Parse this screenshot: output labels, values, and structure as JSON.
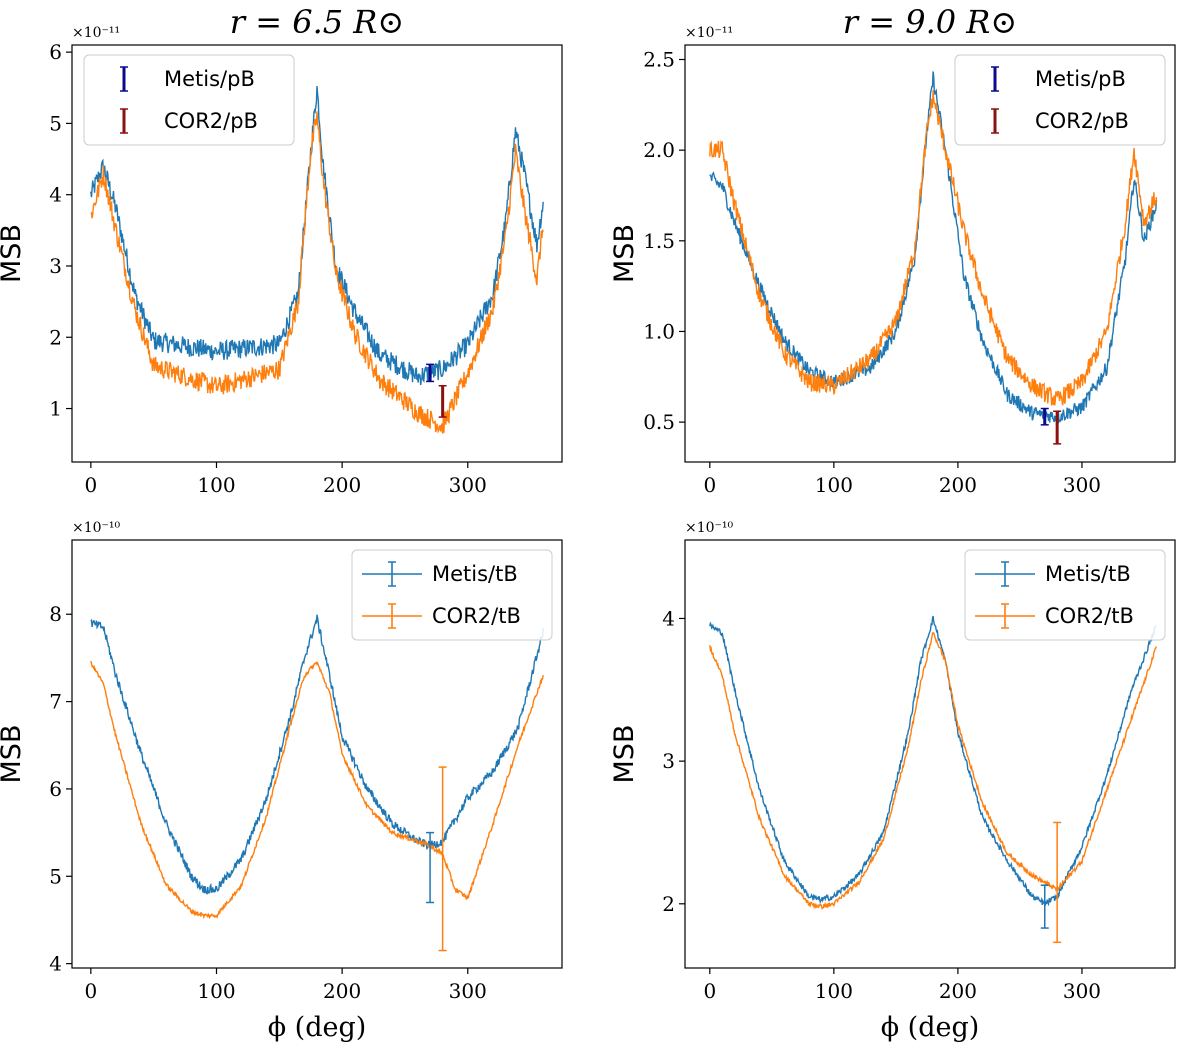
{
  "colors": {
    "metis": "#1f77b4",
    "cor2": "#ff7f0e",
    "metis_err_pb": "#0b0b8a",
    "cor2_err_pb": "#8b1010"
  },
  "chart_data": [
    {
      "type": "line",
      "title": "r = 6.5 R⊙",
      "xlabel": "",
      "ylabel": "MSB",
      "multiplier": "×10⁻¹¹",
      "xlim": [
        -15,
        375
      ],
      "ylim": [
        0.25,
        6.1
      ],
      "xticks": [
        0,
        100,
        200,
        300
      ],
      "yticks": [
        1,
        2,
        3,
        4,
        5,
        6
      ],
      "legend_position": "top-left",
      "series": [
        {
          "name": "Metis/pB",
          "color": "#1f77b4",
          "noise": 0.14,
          "key_x": [
            0,
            10,
            20,
            35,
            50,
            100,
            150,
            165,
            175,
            180,
            185,
            195,
            210,
            230,
            260,
            280,
            300,
            320,
            330,
            338,
            345,
            355,
            360
          ],
          "key_y": [
            4.0,
            4.4,
            3.8,
            2.6,
            1.95,
            1.8,
            1.9,
            2.6,
            4.6,
            5.5,
            4.4,
            3.0,
            2.35,
            1.75,
            1.45,
            1.55,
            1.9,
            2.6,
            3.6,
            4.9,
            4.3,
            3.3,
            3.9
          ],
          "errorbar": {
            "x": 270,
            "y": 1.5,
            "err": 0.12,
            "color": "#0b0b8a"
          }
        },
        {
          "name": "COR2/pB",
          "color": "#ff7f0e",
          "noise": 0.14,
          "key_x": [
            0,
            10,
            20,
            35,
            50,
            100,
            150,
            165,
            175,
            180,
            185,
            195,
            210,
            230,
            260,
            280,
            300,
            320,
            330,
            338,
            345,
            355,
            360
          ],
          "key_y": [
            3.7,
            4.3,
            3.5,
            2.4,
            1.6,
            1.3,
            1.55,
            2.5,
            4.6,
            5.1,
            4.2,
            2.9,
            2.05,
            1.4,
            0.95,
            0.75,
            1.5,
            2.4,
            3.4,
            4.6,
            3.8,
            2.8,
            3.6
          ],
          "errorbar": {
            "x": 280,
            "y": 1.1,
            "err": 0.22,
            "color": "#8b1010"
          }
        }
      ]
    },
    {
      "type": "line",
      "title": "r = 9.0 R⊙",
      "xlabel": "",
      "ylabel": "MSB",
      "multiplier": "×10⁻¹¹",
      "xlim": [
        -20,
        375
      ],
      "ylim": [
        0.28,
        2.58
      ],
      "xticks": [
        0,
        100,
        200,
        300
      ],
      "yticks": [
        0.5,
        1.0,
        1.5,
        2.0,
        2.5
      ],
      "legend_position": "top-right",
      "series": [
        {
          "name": "Metis/pB",
          "color": "#1f77b4",
          "noise": 0.04,
          "key_x": [
            0,
            10,
            20,
            40,
            60,
            80,
            100,
            130,
            150,
            165,
            175,
            180,
            190,
            205,
            220,
            240,
            260,
            280,
            300,
            320,
            335,
            342,
            350,
            360
          ],
          "key_y": [
            1.85,
            1.8,
            1.6,
            1.25,
            0.95,
            0.78,
            0.72,
            0.8,
            1.0,
            1.4,
            2.1,
            2.4,
            2.0,
            1.3,
            0.95,
            0.65,
            0.55,
            0.53,
            0.58,
            0.8,
            1.4,
            1.85,
            1.5,
            1.7
          ],
          "errorbar": {
            "x": 270,
            "y": 0.53,
            "err": 0.045,
            "color": "#0b0b8a"
          }
        },
        {
          "name": "COR2/pB",
          "color": "#ff7f0e",
          "noise": 0.05,
          "key_x": [
            0,
            10,
            20,
            40,
            60,
            80,
            100,
            130,
            150,
            165,
            175,
            180,
            190,
            205,
            220,
            240,
            260,
            280,
            300,
            320,
            335,
            342,
            350,
            360
          ],
          "key_y": [
            2.0,
            2.0,
            1.7,
            1.2,
            0.88,
            0.72,
            0.7,
            0.85,
            1.05,
            1.45,
            2.1,
            2.3,
            2.0,
            1.55,
            1.2,
            0.85,
            0.7,
            0.62,
            0.72,
            1.0,
            1.6,
            2.0,
            1.6,
            1.75
          ],
          "errorbar": {
            "x": 280,
            "y": 0.47,
            "err": 0.09,
            "color": "#8b1010"
          }
        }
      ]
    },
    {
      "type": "line",
      "title": "",
      "xlabel": "ϕ (deg)",
      "ylabel": "MSB",
      "multiplier": "×10⁻¹⁰",
      "xlim": [
        -15,
        375
      ],
      "ylim": [
        3.95,
        8.85
      ],
      "xticks": [
        0,
        100,
        200,
        300
      ],
      "yticks": [
        4,
        5,
        6,
        7,
        8
      ],
      "legend_position": "top-right",
      "series": [
        {
          "name": "Metis/tB",
          "color": "#1f77b4",
          "noise": 0.05,
          "key_x": [
            0,
            10,
            20,
            40,
            60,
            80,
            90,
            100,
            120,
            140,
            160,
            170,
            180,
            190,
            200,
            220,
            240,
            260,
            270,
            280,
            300,
            320,
            340,
            360
          ],
          "key_y": [
            7.9,
            7.85,
            7.3,
            6.4,
            5.6,
            5.0,
            4.85,
            4.85,
            5.2,
            5.9,
            6.9,
            7.5,
            7.95,
            7.3,
            6.6,
            6.0,
            5.6,
            5.4,
            5.35,
            5.4,
            5.9,
            6.2,
            6.7,
            7.8
          ],
          "errorbar": {
            "x": 270,
            "y": 5.1,
            "err": 0.4,
            "color": "#1f77b4"
          }
        },
        {
          "name": "COR2/tB",
          "color": "#ff7f0e",
          "noise": 0.025,
          "key_x": [
            0,
            10,
            20,
            40,
            60,
            80,
            90,
            100,
            120,
            140,
            160,
            170,
            180,
            190,
            200,
            220,
            240,
            260,
            270,
            280,
            290,
            300,
            320,
            340,
            360
          ],
          "key_y": [
            7.45,
            7.2,
            6.6,
            5.6,
            4.9,
            4.6,
            4.55,
            4.55,
            4.9,
            5.7,
            6.8,
            7.3,
            7.45,
            7.1,
            6.4,
            5.8,
            5.5,
            5.4,
            5.35,
            5.25,
            4.85,
            4.75,
            5.6,
            6.5,
            7.3
          ],
          "errorbar": {
            "x": 280,
            "y": 5.2,
            "err": 1.05,
            "color": "#ff7f0e"
          }
        }
      ]
    },
    {
      "type": "line",
      "title": "",
      "xlabel": "ϕ (deg)",
      "ylabel": "MSB",
      "multiplier": "×10⁻¹⁰",
      "xlim": [
        -20,
        375
      ],
      "ylim": [
        1.55,
        4.55
      ],
      "xticks": [
        0,
        100,
        200,
        300
      ],
      "yticks": [
        2,
        3,
        4
      ],
      "legend_position": "top-right",
      "series": [
        {
          "name": "Metis/tB",
          "color": "#1f77b4",
          "noise": 0.02,
          "key_x": [
            0,
            10,
            20,
            40,
            60,
            80,
            90,
            100,
            120,
            140,
            160,
            170,
            180,
            190,
            200,
            220,
            240,
            260,
            270,
            280,
            300,
            320,
            340,
            360
          ],
          "key_y": [
            3.95,
            3.9,
            3.5,
            2.8,
            2.3,
            2.05,
            2.03,
            2.05,
            2.2,
            2.5,
            3.2,
            3.7,
            4.0,
            3.7,
            3.2,
            2.6,
            2.3,
            2.05,
            2.0,
            2.05,
            2.4,
            2.9,
            3.5,
            3.95
          ],
          "errorbar": {
            "x": 270,
            "y": 1.98,
            "err": 0.15,
            "color": "#1f77b4"
          }
        },
        {
          "name": "COR2/tB",
          "color": "#ff7f0e",
          "noise": 0.015,
          "key_x": [
            0,
            10,
            20,
            40,
            60,
            80,
            90,
            100,
            120,
            140,
            160,
            170,
            180,
            190,
            200,
            220,
            240,
            260,
            270,
            280,
            300,
            320,
            340,
            360
          ],
          "key_y": [
            3.8,
            3.6,
            3.2,
            2.6,
            2.2,
            2.0,
            1.98,
            2.0,
            2.15,
            2.45,
            3.1,
            3.55,
            3.9,
            3.7,
            3.25,
            2.7,
            2.35,
            2.2,
            2.15,
            2.1,
            2.3,
            2.8,
            3.3,
            3.8
          ],
          "errorbar": {
            "x": 280,
            "y": 2.15,
            "err": 0.42,
            "color": "#ff7f0e"
          }
        }
      ]
    }
  ]
}
